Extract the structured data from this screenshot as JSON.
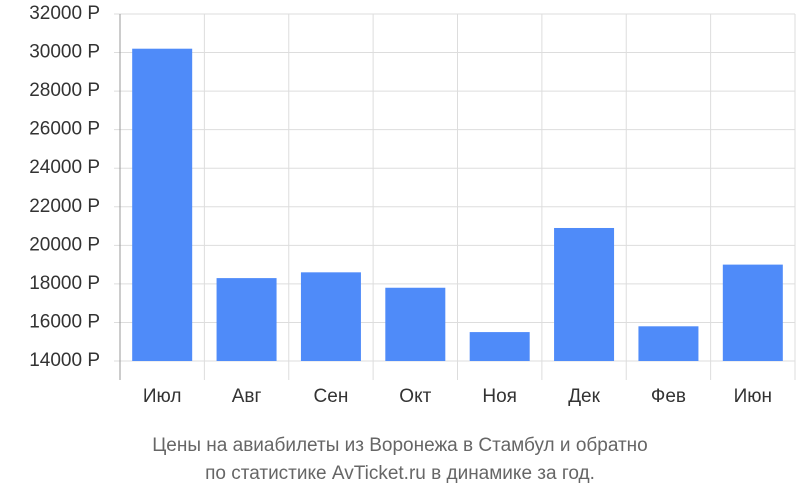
{
  "chart_data": {
    "type": "bar",
    "title": "Цены на авиабилеты из Воронежа в Стамбул и обратно",
    "subtitle": "по статистике AvTicket.ru в динамике за год.",
    "categories": [
      "Июл",
      "Авг",
      "Сен",
      "Окт",
      "Ноя",
      "Дек",
      "Фев",
      "Июн"
    ],
    "values": [
      30200,
      18300,
      18600,
      17800,
      15500,
      20900,
      15800,
      19000
    ],
    "color": "#4f8bf9",
    "ylim": [
      14000,
      32000
    ],
    "yticks": [
      {
        "value": 14000,
        "label": "14000 Р"
      },
      {
        "value": 16000,
        "label": "16000 Р"
      },
      {
        "value": 18000,
        "label": "18000 Р"
      },
      {
        "value": 20000,
        "label": "20000 Р"
      },
      {
        "value": 22000,
        "label": "22000 Р"
      },
      {
        "value": 24000,
        "label": "24000 Р"
      },
      {
        "value": 26000,
        "label": "26000 Р"
      },
      {
        "value": 28000,
        "label": "28000 Р"
      },
      {
        "value": 30000,
        "label": "30000 Р"
      },
      {
        "value": 32000,
        "label": "32000 Р"
      }
    ],
    "grid": true
  }
}
